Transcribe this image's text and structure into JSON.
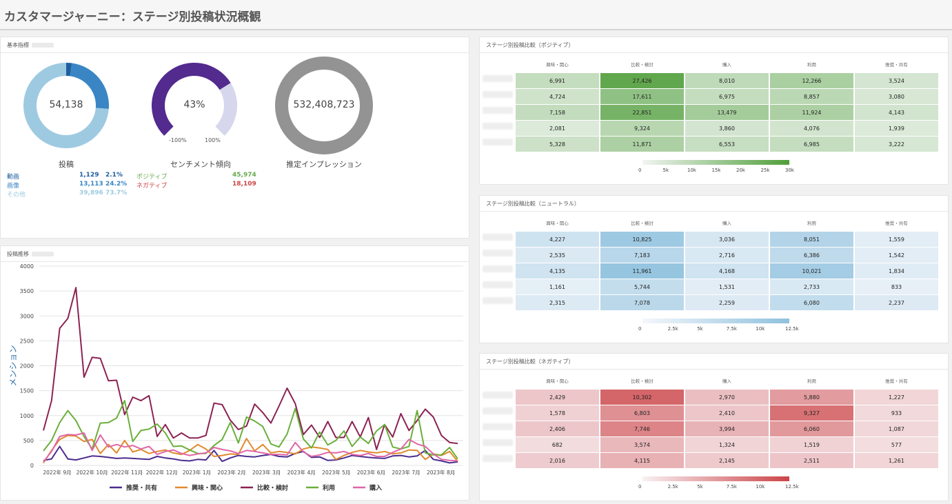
{
  "title": "カスタマージャーニー：ステージ別投稿状況概観",
  "kpi": {
    "panel_title": "基本指標",
    "posts": {
      "value": "54,138",
      "label": "投稿",
      "breakdown": [
        {
          "name": "動画",
          "count": "1,129",
          "pct": "2.1%",
          "color": "#1f5fa0"
        },
        {
          "name": "画像",
          "count": "13,113",
          "pct": "24.2%",
          "color": "#3a86c4"
        },
        {
          "name": "その他",
          "count": "39,896",
          "pct": "73.7%",
          "color": "#9ecae1"
        }
      ],
      "fractions": [
        0.021,
        0.242,
        0.737
      ]
    },
    "sentiment": {
      "value": "43%",
      "label": "センチメント傾向",
      "min_label": "-100%",
      "max_label": "100%",
      "fraction": 0.715,
      "breakdown": [
        {
          "name": "ポジティブ",
          "count": "45,974",
          "color": "#6aa84f"
        },
        {
          "name": "ネガティブ",
          "count": "18,109",
          "color": "#cc4444"
        }
      ]
    },
    "impressions": {
      "value": "532,408,723",
      "label": "推定インプレッション"
    }
  },
  "trend": {
    "panel_title": "投稿推移"
  },
  "chart_data": {
    "type": "line",
    "ylabel": "メンション",
    "ylim": [
      0,
      4000
    ],
    "yticks": [
      "0",
      "500",
      "1000",
      "1500",
      "2000",
      "2500",
      "3000",
      "3500",
      "4000"
    ],
    "xtick_labels": [
      "2022年 9月",
      "2022年 10月",
      "2022年 11月",
      "2022年 12月",
      "2023年 1月",
      "2023年 2月",
      "2023年 3月",
      "2023年 4月",
      "2023年 5月",
      "2023年 6月",
      "2023年 7月",
      "2023年 8月"
    ],
    "series": [
      {
        "name": "推奨・共有",
        "color": "#4b2c8e",
        "values": [
          100,
          130,
          380,
          130,
          110,
          150,
          190,
          180,
          160,
          140,
          150,
          140,
          130,
          120,
          180,
          150,
          130,
          100,
          90,
          120,
          110,
          300,
          80,
          150,
          200,
          180,
          170,
          200,
          220,
          180,
          170,
          240,
          280,
          160,
          170,
          100,
          110,
          150,
          200,
          180,
          160,
          150,
          140,
          190,
          200,
          170,
          190,
          300,
          120,
          90,
          50,
          70
        ]
      },
      {
        "name": "興味・関心",
        "color": "#e08a2c",
        "values": [
          50,
          300,
          520,
          600,
          590,
          480,
          520,
          240,
          420,
          250,
          500,
          270,
          320,
          240,
          280,
          310,
          250,
          220,
          300,
          420,
          330,
          180,
          200,
          230,
          220,
          540,
          290,
          420,
          250,
          280,
          260,
          230,
          330,
          370,
          350,
          320,
          120,
          200,
          260,
          300,
          270,
          250,
          280,
          230,
          250,
          310,
          300,
          120,
          230,
          200,
          280,
          80
        ]
      },
      {
        "name": "比較・検討",
        "color": "#8b2252",
        "values": [
          700,
          1300,
          2750,
          2950,
          3570,
          1770,
          2170,
          2150,
          1700,
          1710,
          1020,
          1370,
          1300,
          1400,
          580,
          820,
          550,
          650,
          550,
          550,
          600,
          1250,
          1220,
          910,
          720,
          790,
          1230,
          1060,
          850,
          1190,
          1550,
          1240,
          620,
          810,
          560,
          880,
          560,
          560,
          880,
          570,
          960,
          320,
          820,
          570,
          1040,
          700,
          900,
          1130,
          970,
          600,
          460,
          440
        ]
      },
      {
        "name": "利用",
        "color": "#6aaf3a",
        "values": [
          290,
          500,
          860,
          1100,
          900,
          580,
          330,
          850,
          860,
          950,
          1300,
          480,
          700,
          730,
          830,
          650,
          380,
          390,
          310,
          240,
          240,
          400,
          520,
          860,
          450,
          970,
          890,
          780,
          430,
          370,
          630,
          1140,
          530,
          350,
          670,
          410,
          500,
          690,
          380,
          570,
          440,
          690,
          820,
          370,
          330,
          380,
          1100,
          250,
          210,
          210,
          360,
          130
        ]
      },
      {
        "name": "購入",
        "color": "#e066a8",
        "values": [
          70,
          280,
          580,
          620,
          610,
          650,
          300,
          610,
          370,
          420,
          370,
          400,
          330,
          380,
          220,
          280,
          310,
          240,
          200,
          230,
          250,
          360,
          320,
          290,
          240,
          300,
          280,
          250,
          220,
          220,
          210,
          460,
          270,
          180,
          210,
          260,
          250,
          280,
          220,
          200,
          240,
          180,
          180,
          260,
          330,
          520,
          430,
          380,
          230,
          120,
          100,
          90
        ]
      }
    ]
  },
  "positive": {
    "panel_title": "ステージ別投稿比較（ポジティブ）",
    "columns": [
      "興味・関心",
      "比較・検討",
      "購入",
      "利用",
      "推奨・共有"
    ],
    "rows": [
      [
        "6,991",
        "27,426",
        "8,010",
        "12,266",
        "3,524"
      ],
      [
        "4,724",
        "17,611",
        "6,975",
        "8,857",
        "3,080"
      ],
      [
        "7,158",
        "22,851",
        "13,479",
        "11,924",
        "4,143"
      ],
      [
        "2,081",
        "9,324",
        "3,860",
        "4,076",
        "1,939"
      ],
      [
        "5,328",
        "11,871",
        "6,553",
        "6,985",
        "3,222"
      ]
    ],
    "numbers": [
      [
        6991,
        27426,
        8010,
        12266,
        3524
      ],
      [
        4724,
        17611,
        6975,
        8857,
        3080
      ],
      [
        7158,
        22851,
        13479,
        11924,
        4143
      ],
      [
        2081,
        9324,
        3860,
        4076,
        1939
      ],
      [
        5328,
        11871,
        6553,
        6985,
        3222
      ]
    ],
    "max": 30000,
    "color": "#4f9e3a",
    "legend": [
      "0",
      "5k",
      "10k",
      "15k",
      "20k",
      "25k",
      "30k"
    ]
  },
  "neutral": {
    "panel_title": "ステージ別投稿比較（ニュートラル）",
    "columns": [
      "興味・関心",
      "比較・検討",
      "購入",
      "利用",
      "推奨・共有"
    ],
    "rows": [
      [
        "4,227",
        "10,825",
        "3,036",
        "8,051",
        "1,559"
      ],
      [
        "2,535",
        "7,183",
        "2,716",
        "6,386",
        "1,542"
      ],
      [
        "4,135",
        "11,961",
        "4,168",
        "10,021",
        "1,834"
      ],
      [
        "1,161",
        "5,744",
        "1,531",
        "2,733",
        "833"
      ],
      [
        "2,315",
        "7,078",
        "2,259",
        "6,080",
        "2,237"
      ]
    ],
    "numbers": [
      [
        4227,
        10825,
        3036,
        8051,
        1559
      ],
      [
        2535,
        7183,
        2716,
        6386,
        1542
      ],
      [
        4135,
        11961,
        4168,
        10021,
        1834
      ],
      [
        1161,
        5744,
        1531,
        2733,
        833
      ],
      [
        2315,
        7078,
        2259,
        6080,
        2237
      ]
    ],
    "max": 12500,
    "color": "#8fc1de",
    "legend": [
      "0",
      "2.5k",
      "5k",
      "7.5k",
      "10k",
      "12.5k"
    ]
  },
  "negative": {
    "panel_title": "ステージ別投稿比較（ネガティブ）",
    "columns": [
      "興味・関心",
      "比較・検討",
      "購入",
      "利用",
      "推奨・共有"
    ],
    "rows": [
      [
        "2,429",
        "10,302",
        "2,970",
        "5,880",
        "1,227"
      ],
      [
        "1,578",
        "6,803",
        "2,410",
        "9,327",
        "933"
      ],
      [
        "2,406",
        "7,746",
        "3,994",
        "6,060",
        "1,087"
      ],
      [
        "682",
        "3,574",
        "1,324",
        "1,519",
        "577"
      ],
      [
        "2,016",
        "4,115",
        "2,145",
        "2,511",
        "1,261"
      ]
    ],
    "numbers": [
      [
        2429,
        10302,
        2970,
        5880,
        1227
      ],
      [
        1578,
        6803,
        2410,
        9327,
        933
      ],
      [
        2406,
        7746,
        3994,
        6060,
        1087
      ],
      [
        682,
        3574,
        1324,
        1519,
        577
      ],
      [
        2016,
        4115,
        2145,
        2511,
        1261
      ]
    ],
    "max": 12500,
    "color": "#cc4448",
    "legend": [
      "0",
      "2.5k",
      "5k",
      "7.5k",
      "10k",
      "12.5k"
    ]
  }
}
